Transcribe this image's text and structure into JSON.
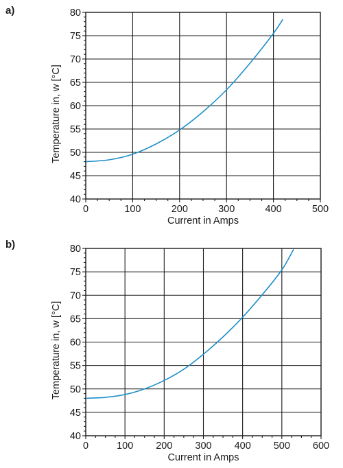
{
  "chart_data": [
    {
      "panel_label": "a)",
      "type": "line",
      "xlabel": "Current in Amps",
      "ylabel": "Temperature in, w [°C]",
      "xlim": [
        0,
        500
      ],
      "ylim": [
        40,
        80
      ],
      "x_ticks": [
        0,
        100,
        200,
        300,
        400,
        500
      ],
      "y_ticks": [
        40,
        45,
        50,
        55,
        60,
        65,
        70,
        75,
        80
      ],
      "grid": true,
      "series": [
        {
          "color": "#1f8fc9",
          "x": [
            0,
            50,
            100,
            150,
            200,
            250,
            300,
            350,
            400,
            420
          ],
          "y": [
            48,
            48.4,
            49.6,
            51.8,
            54.8,
            58.7,
            63.4,
            69.1,
            75.5,
            78.5
          ]
        }
      ]
    },
    {
      "panel_label": "b)",
      "type": "line",
      "xlabel": "Current in Amps",
      "ylabel": "Temperature in, w [°C]",
      "xlim": [
        0,
        600
      ],
      "ylim": [
        40,
        80
      ],
      "x_ticks": [
        0,
        100,
        200,
        300,
        400,
        500,
        600
      ],
      "y_ticks": [
        40,
        45,
        50,
        55,
        60,
        65,
        70,
        75,
        80
      ],
      "grid": true,
      "series": [
        {
          "color": "#1f8fc9",
          "x": [
            0,
            50,
            100,
            150,
            200,
            250,
            300,
            350,
            400,
            450,
            500,
            530
          ],
          "y": [
            48,
            48.2,
            48.8,
            50,
            51.8,
            54.2,
            57.4,
            61.1,
            65.3,
            70.1,
            75.4,
            79.8
          ]
        }
      ]
    }
  ]
}
